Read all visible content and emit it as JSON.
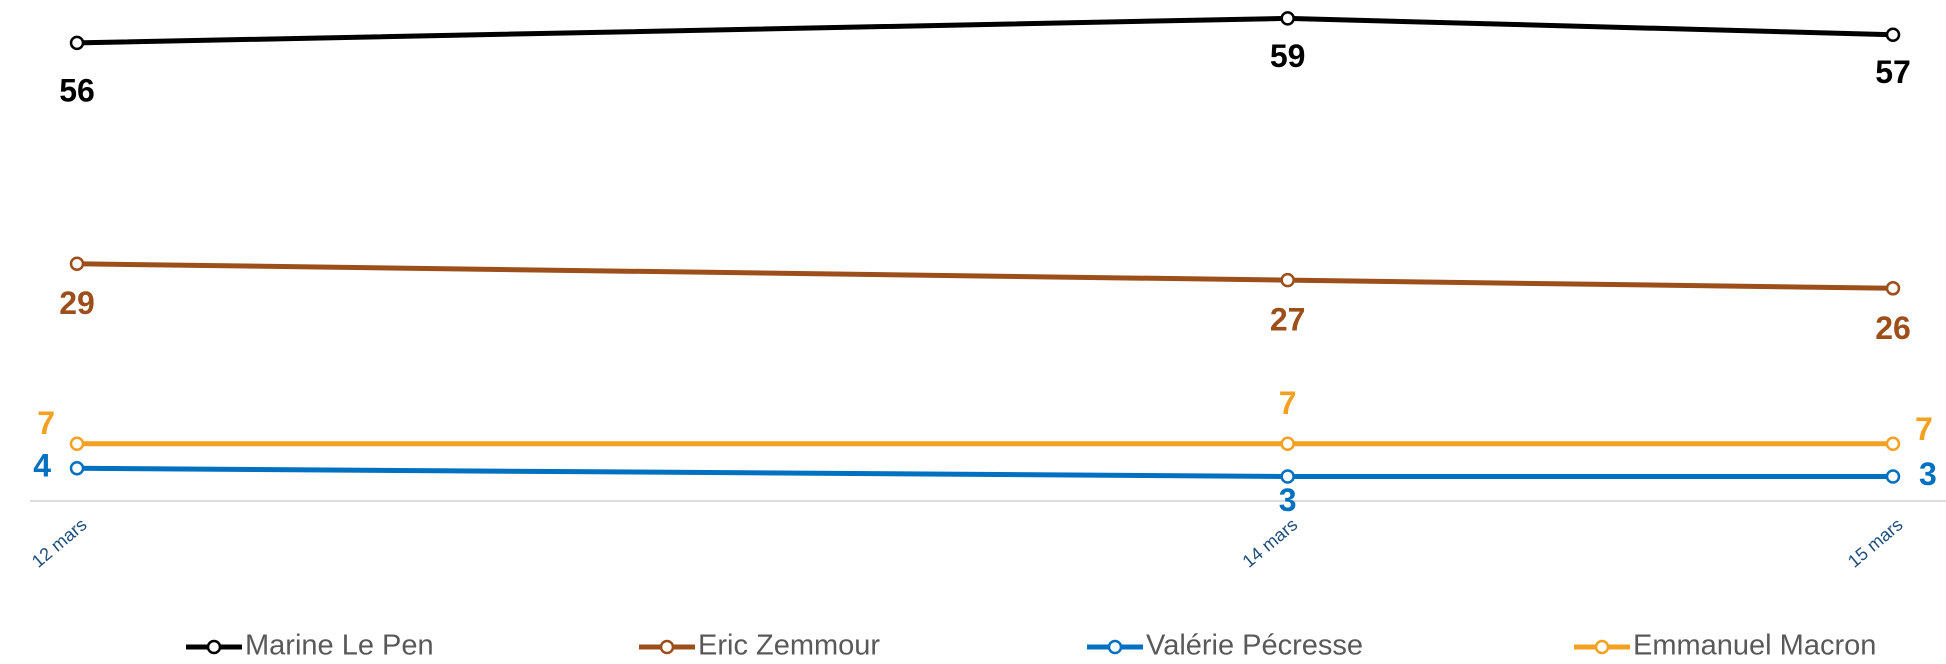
{
  "chart_data": {
    "type": "line",
    "x": [
      12,
      14,
      15
    ],
    "xlim": [
      12,
      15
    ],
    "xticks": [
      {
        "value": 12,
        "label": "12 mars"
      },
      {
        "value": 14,
        "label": "14 mars"
      },
      {
        "value": 15,
        "label": "15 mars"
      }
    ],
    "ylim": [
      0,
      61
    ],
    "legend": "bottom",
    "series": [
      {
        "name": "Marine Le Pen",
        "color": "#000000",
        "values": [
          56,
          59,
          57
        ]
      },
      {
        "name": "Eric Zemmour",
        "color": "#9c4f1a",
        "values": [
          29,
          27,
          26
        ]
      },
      {
        "name": "Valérie Pécresse",
        "color": "#0070c0",
        "values": [
          4,
          3,
          3
        ]
      },
      {
        "name": "Emmanuel Macron",
        "color": "#f4a020",
        "values": [
          7,
          7,
          7
        ]
      }
    ]
  }
}
